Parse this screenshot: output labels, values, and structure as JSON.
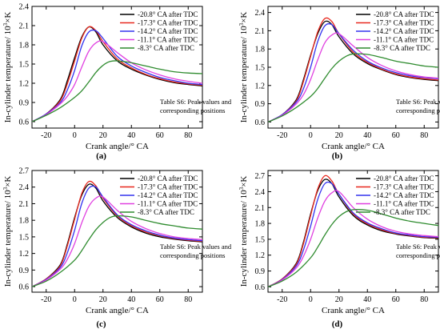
{
  "figure": {
    "ylabel_html": [
      "In-cylinder temperature/ 10",
      "3",
      "×K"
    ],
    "xlabel": "Crank angle/° CA",
    "note_lines": [
      "Table S6: Peak values and",
      "corresponding positions"
    ]
  },
  "legend": [
    {
      "name": "-20.8° CA after TDC",
      "color": "#000000"
    },
    {
      "name": "-17.3° CA after TDC",
      "color": "#e8281e"
    },
    {
      "name": "-14.2° CA after TDC",
      "color": "#3333ee"
    },
    {
      "name": "-11.1° CA after TDC",
      "color": "#e040e0"
    },
    {
      "name": "-8.3° CA after TDC",
      "color": "#2e8b2e"
    }
  ],
  "chart_data": [
    {
      "type": "line",
      "panel_label": "(a)",
      "xlim": [
        -30,
        90
      ],
      "ylim": [
        0.5,
        2.4
      ],
      "xticks": [
        -20,
        0,
        20,
        40,
        60,
        80
      ],
      "yticks": [
        0.6,
        0.9,
        1.2,
        1.5,
        1.8,
        2.1,
        2.4
      ],
      "ylabel": "In-cylinder temperature/ 10^3×K",
      "xlabel": "Crank angle/° CA",
      "series": [
        {
          "name": "-20.8° CA after TDC",
          "x": [
            -30,
            -20,
            -10,
            -5,
            0,
            5,
            10,
            15,
            20,
            30,
            40,
            50,
            60,
            70,
            80,
            90
          ],
          "y": [
            0.6,
            0.72,
            0.95,
            1.25,
            1.6,
            1.92,
            2.08,
            2.0,
            1.8,
            1.55,
            1.42,
            1.33,
            1.26,
            1.21,
            1.18,
            1.16
          ]
        },
        {
          "name": "-17.3° CA after TDC",
          "x": [
            -30,
            -20,
            -10,
            -5,
            0,
            5,
            10,
            15,
            20,
            30,
            40,
            50,
            60,
            70,
            80,
            90
          ],
          "y": [
            0.6,
            0.72,
            0.93,
            1.2,
            1.55,
            1.9,
            2.08,
            2.02,
            1.85,
            1.58,
            1.44,
            1.34,
            1.27,
            1.22,
            1.19,
            1.17
          ]
        },
        {
          "name": "-14.2° CA after TDC",
          "x": [
            -30,
            -20,
            -10,
            -5,
            0,
            5,
            10,
            15,
            20,
            30,
            40,
            50,
            60,
            70,
            80,
            90
          ],
          "y": [
            0.6,
            0.72,
            0.9,
            1.1,
            1.4,
            1.78,
            2.0,
            2.02,
            1.9,
            1.62,
            1.47,
            1.37,
            1.29,
            1.24,
            1.2,
            1.18
          ]
        },
        {
          "name": "-11.1° CA after TDC",
          "x": [
            -30,
            -20,
            -10,
            -5,
            0,
            5,
            10,
            15,
            20,
            30,
            40,
            50,
            60,
            70,
            80,
            90
          ],
          "y": [
            0.6,
            0.71,
            0.88,
            1.0,
            1.18,
            1.45,
            1.7,
            1.83,
            1.85,
            1.68,
            1.52,
            1.41,
            1.33,
            1.27,
            1.23,
            1.2
          ]
        },
        {
          "name": "-8.3° CA after TDC",
          "x": [
            -30,
            -20,
            -10,
            0,
            5,
            10,
            15,
            20,
            25,
            30,
            40,
            50,
            60,
            70,
            80,
            90
          ],
          "y": [
            0.6,
            0.7,
            0.82,
            0.98,
            1.08,
            1.22,
            1.37,
            1.48,
            1.54,
            1.55,
            1.52,
            1.47,
            1.42,
            1.38,
            1.36,
            1.35
          ]
        }
      ]
    },
    {
      "type": "line",
      "panel_label": "(b)",
      "xlim": [
        -30,
        90
      ],
      "ylim": [
        0.5,
        2.5
      ],
      "xticks": [
        -20,
        0,
        20,
        40,
        60,
        80
      ],
      "yticks": [
        0.6,
        0.9,
        1.2,
        1.5,
        1.8,
        2.1,
        2.4
      ],
      "ylabel": "In-cylinder temperature/ 10^3×K",
      "xlabel": "Crank angle/° CA",
      "series": [
        {
          "name": "-20.8° CA after TDC",
          "x": [
            -30,
            -20,
            -10,
            -5,
            0,
            5,
            10,
            15,
            20,
            30,
            40,
            50,
            60,
            70,
            80,
            90
          ],
          "y": [
            0.6,
            0.72,
            0.97,
            1.3,
            1.7,
            2.05,
            2.25,
            2.2,
            2.0,
            1.72,
            1.56,
            1.46,
            1.38,
            1.33,
            1.3,
            1.28
          ]
        },
        {
          "name": "-17.3° CA after TDC",
          "x": [
            -30,
            -20,
            -10,
            -5,
            0,
            5,
            10,
            15,
            20,
            30,
            40,
            50,
            60,
            70,
            80,
            90
          ],
          "y": [
            0.6,
            0.72,
            0.95,
            1.27,
            1.68,
            2.08,
            2.3,
            2.25,
            2.05,
            1.75,
            1.58,
            1.47,
            1.39,
            1.34,
            1.31,
            1.29
          ]
        },
        {
          "name": "-14.2° CA after TDC",
          "x": [
            -30,
            -20,
            -10,
            -5,
            0,
            5,
            10,
            15,
            20,
            30,
            40,
            50,
            60,
            70,
            80,
            90
          ],
          "y": [
            0.6,
            0.72,
            0.93,
            1.15,
            1.5,
            1.92,
            2.18,
            2.2,
            2.05,
            1.78,
            1.6,
            1.49,
            1.41,
            1.36,
            1.33,
            1.31
          ]
        },
        {
          "name": "-11.1° CA after TDC",
          "x": [
            -30,
            -20,
            -10,
            -5,
            0,
            5,
            10,
            15,
            20,
            30,
            40,
            50,
            60,
            70,
            80,
            90
          ],
          "y": [
            0.6,
            0.71,
            0.9,
            1.05,
            1.3,
            1.62,
            1.9,
            2.03,
            2.05,
            1.85,
            1.66,
            1.53,
            1.44,
            1.38,
            1.34,
            1.32
          ]
        },
        {
          "name": "-8.3° CA after TDC",
          "x": [
            -30,
            -20,
            -10,
            0,
            5,
            10,
            15,
            20,
            25,
            30,
            40,
            50,
            60,
            70,
            80,
            90
          ],
          "y": [
            0.6,
            0.7,
            0.84,
            1.02,
            1.15,
            1.32,
            1.48,
            1.6,
            1.68,
            1.72,
            1.71,
            1.66,
            1.6,
            1.56,
            1.52,
            1.5
          ]
        }
      ]
    },
    {
      "type": "line",
      "panel_label": "(c)",
      "xlim": [
        -30,
        90
      ],
      "ylim": [
        0.5,
        2.7
      ],
      "xticks": [
        -20,
        0,
        20,
        40,
        60,
        80
      ],
      "yticks": [
        0.6,
        0.9,
        1.2,
        1.5,
        1.8,
        2.1,
        2.4,
        2.7
      ],
      "ylabel": "In-cylinder temperature/ 10^3×K",
      "xlabel": "Crank angle/° CA",
      "series": [
        {
          "name": "-20.8° CA after TDC",
          "x": [
            -30,
            -20,
            -10,
            -5,
            0,
            5,
            10,
            15,
            20,
            30,
            40,
            50,
            60,
            70,
            80,
            90
          ],
          "y": [
            0.6,
            0.74,
            1.0,
            1.38,
            1.85,
            2.25,
            2.45,
            2.38,
            2.15,
            1.85,
            1.68,
            1.57,
            1.5,
            1.46,
            1.43,
            1.41
          ]
        },
        {
          "name": "-17.3° CA after TDC",
          "x": [
            -30,
            -20,
            -10,
            -5,
            0,
            5,
            10,
            15,
            20,
            30,
            40,
            50,
            60,
            70,
            80,
            90
          ],
          "y": [
            0.6,
            0.74,
            0.98,
            1.35,
            1.82,
            2.28,
            2.5,
            2.42,
            2.2,
            1.88,
            1.7,
            1.59,
            1.52,
            1.47,
            1.44,
            1.42
          ]
        },
        {
          "name": "-14.2° CA after TDC",
          "x": [
            -30,
            -20,
            -10,
            -5,
            0,
            5,
            10,
            15,
            20,
            30,
            40,
            50,
            60,
            70,
            80,
            90
          ],
          "y": [
            0.6,
            0.73,
            0.95,
            1.22,
            1.62,
            2.1,
            2.38,
            2.4,
            2.22,
            1.9,
            1.72,
            1.61,
            1.53,
            1.48,
            1.45,
            1.43
          ]
        },
        {
          "name": "-11.1° CA after TDC",
          "x": [
            -30,
            -20,
            -10,
            -5,
            0,
            5,
            10,
            15,
            20,
            30,
            40,
            50,
            60,
            70,
            80,
            90
          ],
          "y": [
            0.6,
            0.72,
            0.92,
            1.1,
            1.38,
            1.75,
            2.05,
            2.2,
            2.22,
            1.98,
            1.78,
            1.65,
            1.56,
            1.5,
            1.47,
            1.45
          ]
        },
        {
          "name": "-8.3° CA after TDC",
          "x": [
            -30,
            -20,
            -10,
            0,
            5,
            10,
            15,
            20,
            25,
            30,
            40,
            50,
            60,
            70,
            80,
            90
          ],
          "y": [
            0.6,
            0.7,
            0.86,
            1.08,
            1.25,
            1.45,
            1.63,
            1.76,
            1.85,
            1.88,
            1.86,
            1.8,
            1.74,
            1.7,
            1.66,
            1.64
          ]
        }
      ]
    },
    {
      "type": "line",
      "panel_label": "(d)",
      "xlim": [
        -30,
        90
      ],
      "ylim": [
        0.5,
        2.8
      ],
      "xticks": [
        -20,
        0,
        20,
        40,
        60,
        80
      ],
      "yticks": [
        0.6,
        0.9,
        1.2,
        1.5,
        1.8,
        2.1,
        2.4,
        2.7
      ],
      "ylabel": "In-cylinder temperature/ 10^3×K",
      "xlabel": "Crank angle/° CA",
      "series": [
        {
          "name": "-20.8° CA after TDC",
          "x": [
            -30,
            -20,
            -10,
            -5,
            0,
            5,
            10,
            15,
            20,
            30,
            40,
            50,
            60,
            70,
            80,
            90
          ],
          "y": [
            0.6,
            0.75,
            1.05,
            1.45,
            1.98,
            2.42,
            2.63,
            2.55,
            2.3,
            1.95,
            1.77,
            1.66,
            1.6,
            1.56,
            1.53,
            1.52
          ]
        },
        {
          "name": "-17.3° CA after TDC",
          "x": [
            -30,
            -20,
            -10,
            -5,
            0,
            5,
            10,
            15,
            20,
            30,
            40,
            50,
            60,
            70,
            80,
            90
          ],
          "y": [
            0.6,
            0.75,
            1.03,
            1.42,
            1.95,
            2.45,
            2.7,
            2.6,
            2.35,
            1.98,
            1.79,
            1.68,
            1.61,
            1.57,
            1.54,
            1.53
          ]
        },
        {
          "name": "-14.2° CA after TDC",
          "x": [
            -30,
            -20,
            -10,
            -5,
            0,
            5,
            10,
            15,
            20,
            30,
            40,
            50,
            60,
            70,
            80,
            90
          ],
          "y": [
            0.6,
            0.74,
            1.0,
            1.3,
            1.75,
            2.25,
            2.55,
            2.55,
            2.35,
            2.0,
            1.81,
            1.7,
            1.62,
            1.58,
            1.55,
            1.54
          ]
        },
        {
          "name": "-11.1° CA after TDC",
          "x": [
            -30,
            -20,
            -10,
            -5,
            0,
            5,
            10,
            15,
            20,
            30,
            40,
            50,
            60,
            70,
            80,
            90
          ],
          "y": [
            0.6,
            0.73,
            0.96,
            1.18,
            1.5,
            1.9,
            2.22,
            2.38,
            2.4,
            2.1,
            1.88,
            1.74,
            1.65,
            1.6,
            1.57,
            1.55
          ]
        },
        {
          "name": "-8.3° CA after TDC",
          "x": [
            -30,
            -20,
            -10,
            0,
            5,
            10,
            15,
            20,
            25,
            30,
            40,
            50,
            60,
            70,
            80,
            90
          ],
          "y": [
            0.6,
            0.71,
            0.88,
            1.15,
            1.35,
            1.58,
            1.78,
            1.93,
            2.02,
            2.06,
            2.05,
            1.98,
            1.9,
            1.84,
            1.8,
            1.76
          ]
        }
      ]
    }
  ]
}
